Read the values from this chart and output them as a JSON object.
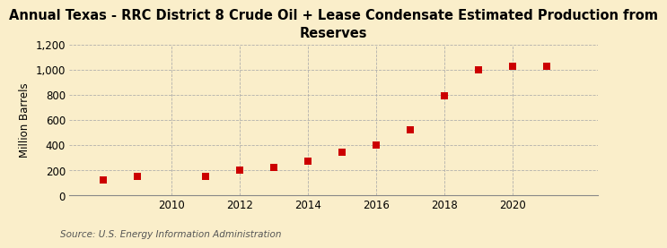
{
  "title": "Annual Texas - RRC District 8 Crude Oil + Lease Condensate Estimated Production from\nReserves",
  "ylabel": "Million Barrels",
  "source": "Source: U.S. Energy Information Administration",
  "years": [
    2008,
    2009,
    2011,
    2012,
    2013,
    2014,
    2015,
    2016,
    2017,
    2018,
    2019,
    2020,
    2021
  ],
  "values": [
    120,
    155,
    155,
    200,
    225,
    270,
    345,
    400,
    525,
    790,
    1000,
    1030,
    1030
  ],
  "marker_color": "#cc0000",
  "marker": "s",
  "marker_size": 6,
  "xlim": [
    2007.0,
    2022.5
  ],
  "ylim": [
    0,
    1200
  ],
  "yticks": [
    0,
    200,
    400,
    600,
    800,
    1000,
    1200
  ],
  "ytick_labels": [
    "0",
    "200",
    "400",
    "600",
    "800",
    "1,000",
    "1,200"
  ],
  "xticks": [
    2010,
    2012,
    2014,
    2016,
    2018,
    2020
  ],
  "background_color": "#faeeca",
  "grid_color": "#aaaaaa",
  "title_fontsize": 10.5,
  "label_fontsize": 8.5,
  "source_fontsize": 7.5
}
